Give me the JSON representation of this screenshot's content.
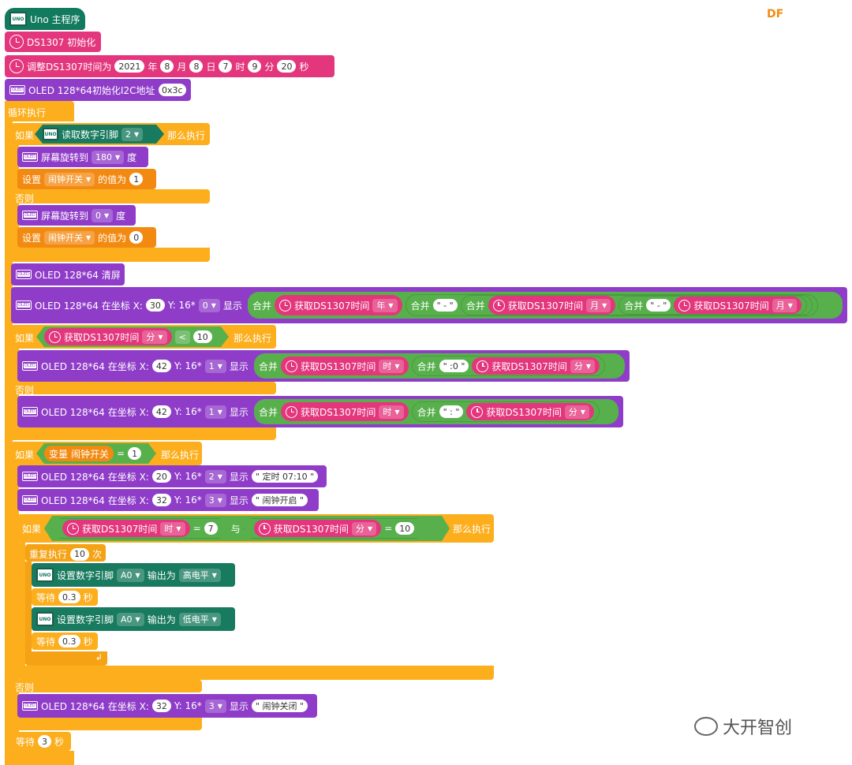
{
  "brand": {
    "df": "DF",
    "watermark": "大开智创"
  },
  "colors": {
    "uno": "#127a5f",
    "clock": "#e3367c",
    "oled": "#8f3dc8",
    "control": "#fcae1d",
    "variable": "#f28a12",
    "logic": "#58b04c"
  },
  "main": {
    "title": "Uno 主程序"
  },
  "init": {
    "ds1307_init": "DS1307 初始化",
    "set_time": {
      "label": "调整DS1307时间为",
      "year": "2021",
      "year_u": "年",
      "month": "8",
      "month_u": "月",
      "day": "8",
      "day_u": "日",
      "hour": "7",
      "hour_u": "时",
      "minute": "9",
      "minute_u": "分",
      "second": "20",
      "second_u": "秒"
    },
    "oled_init": {
      "label": "OLED 128*64初始化I2C地址",
      "addr": "0x3c"
    }
  },
  "loop": {
    "label": "循环执行"
  },
  "kw": {
    "if": "如果",
    "then": "那么执行",
    "else": "否则",
    "set": "设置",
    "value_is": "的值为",
    "display": "显示",
    "merge": "合并",
    "and": "与",
    "times": "次",
    "wait": "等待",
    "seconds": "秒",
    "var": "变量",
    "degree": "度"
  },
  "if1": {
    "read_pin": "读取数字引脚",
    "pin": "2"
  },
  "rotate": {
    "label": "屏幕旋转到",
    "a": "180",
    "b": "0"
  },
  "alarm_var": {
    "name": "闹钟开关",
    "v1": "1",
    "v0": "0"
  },
  "oled_clear": "OLED 128*64 清屏",
  "oled_pos": {
    "prefix": "OLED 128*64 在坐标 X:",
    "y": "Y: 16*"
  },
  "date_line": {
    "x": "30",
    "row": "0",
    "get": "获取DS1307时间",
    "year": "年",
    "month": "月",
    "dash1": "\" - \"",
    "dash2": "\" - \""
  },
  "cond_min": {
    "get": "获取DS1307时间",
    "unit": "分",
    "op": "<",
    "val": "10"
  },
  "time_line": {
    "x": "42",
    "row": "1",
    "get": "获取DS1307时间",
    "hour": "时",
    "min": "分",
    "sep0": "\" :0 \"",
    "sep": "\" : \""
  },
  "alarm_if": {
    "eq": "=",
    "val": "1"
  },
  "timer_line": {
    "x": "20",
    "row": "2",
    "text": "\" 定时 07:10 \""
  },
  "alarm_on_line": {
    "x": "32",
    "row": "3",
    "text": "\" 闹钟开启 \""
  },
  "inner_if": {
    "get": "获取DS1307时间",
    "hour": "时",
    "eq": "=",
    "hv": "7",
    "min": "分",
    "mv": "10"
  },
  "repeat": {
    "label": "重复执行",
    "n": "10"
  },
  "pin_set": {
    "label": "设置数字引脚",
    "pin": "A0",
    "out": "输出为",
    "high": "高电平",
    "low": "低电平"
  },
  "wait_small": "0.3",
  "alarm_off_line": {
    "x": "32",
    "row": "3",
    "text": "\" 闹钟关闭 \""
  },
  "wait_end": "3"
}
